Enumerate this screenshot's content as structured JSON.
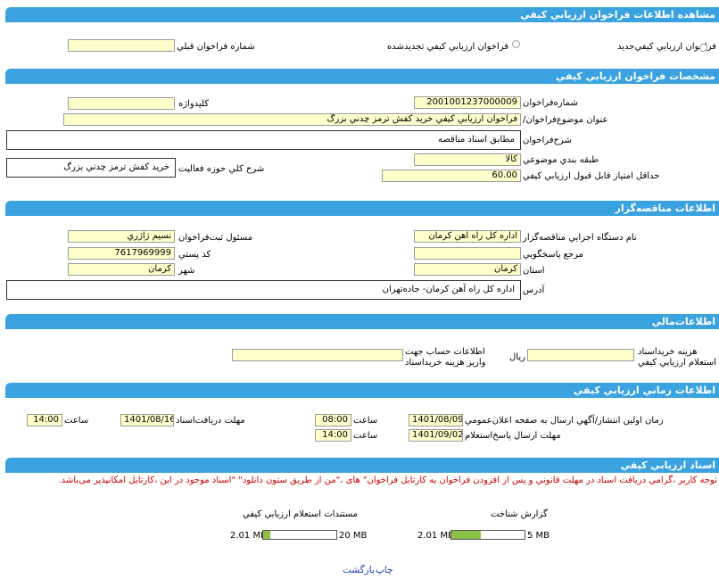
{
  "sections": {
    "view": "مشاهده اطلاعات فراخوان ارزيابي کيفي",
    "specs": "مشخصات فراخوان ارزيابي کيفي",
    "tenderer": "اطلاعات مناقصه‌گزار",
    "financial": "اطلاعات‌مالي",
    "timing": "اطلاعات زماني ارزيابي کيفي",
    "docs": "اسناد ارزيابي کيفي"
  },
  "view": {
    "new_label": "فراخوان ارزيابي کيفي‌جديد",
    "renewed_label": "فراخوان ارزيابي کيفي تجديدشده",
    "prev_number_label": "شماره فراخوان قبلي",
    "prev_number_value": ""
  },
  "specs": {
    "number_label": "شماره‌فراخوان",
    "number_value": "2001001237000009",
    "keyword_label": "کليدواژه",
    "keyword_value": "",
    "title_label": "/عنوان موضوع‌فراخوان",
    "title_value": "فراخوان ارزيابي کيفي خريد کفش ترمز چدني بزرگ",
    "desc_label": "شرح‌فراخوان",
    "desc_value": "مطابق اسناد مناقصه",
    "category_label": "طبقه بندي موضوعي",
    "category_value": "کالا",
    "activity_label": "شرح کلي حوزه فعاليت",
    "activity_value": "خريد کفش ترمز چدني بزرگ",
    "min_score_label": "حداقل امتياز قابل قبول ارزيابي کيفي",
    "min_score_value": "60.00"
  },
  "tenderer": {
    "org_label": "نام دستگاه اجرايي مناقصه‌گزار",
    "org_value": "اداره کل راه آهن کرمان",
    "registrar_label": "مسئول ثبت‌فراخوان",
    "registrar_value": "نسيم ژاژري",
    "ref_label": "مرجع پاسخگويي",
    "ref_value": "",
    "postal_label": "کد پستي",
    "postal_value": "7617969999",
    "province_label": "استان",
    "province_value": "کرمان",
    "city_label": "شهر",
    "city_value": "کرمان",
    "address_label": "آدرس",
    "address_value": "اداره کل راه آهن کرمان- جاده‌تهران"
  },
  "financial": {
    "fee_label_1": "هزينه خريداسناد",
    "fee_label_2": "استعلام ارزيابي کيفي",
    "fee_value": "",
    "rial": "ريال",
    "account_label_1": "اطلاعات حساب جهت",
    "account_label_2": "واريز هزينه خريداسناد",
    "account_value": ""
  },
  "timing": {
    "publish_label": "زمان اولين انتشار/آگهي ارسال به صفحه اعلان‌عمومي",
    "publish_date": "1401/08/09",
    "time_label": "ساعت",
    "publish_time": "08:00",
    "receive_label": "مهلت دريافت‌اسناد",
    "receive_date": "1401/08/16",
    "receive_time": "14:00",
    "answer_label": "مهلت ارسال پاسخ‌استعلام",
    "answer_date": "1401/09/02",
    "answer_time": "14:00"
  },
  "docs": {
    "notice": "توجه کاربر ،گرامي دريافت اسناد در مهلت قانوني و پس از افزودن فراخوان به کارتابل فراخوان\" هاى ،\"من از طريق ستون دانلود\" \"اسناد موجود در اين ،کارتابل امکانپذير مى‌باشد.",
    "report_label": "گزارش شناخت",
    "report_size": "2.01 MB",
    "report_max": "5 MB",
    "report_fraction": 0.402,
    "inquiry_label": "مستندات استعلام ارزيابي کيفي",
    "inquiry_size": "2.01 MB",
    "inquiry_max": "20 MB",
    "inquiry_fraction": 0.1,
    "fill_color": "#8bc34a"
  },
  "footer": {
    "print": "چاپ",
    "back": "بازگشت"
  },
  "colors": {
    "header_bar": "#39a2df",
    "input_bg": "#ffffcc",
    "notice_text": "#cc0000",
    "link_text": "#1a3fb3"
  }
}
